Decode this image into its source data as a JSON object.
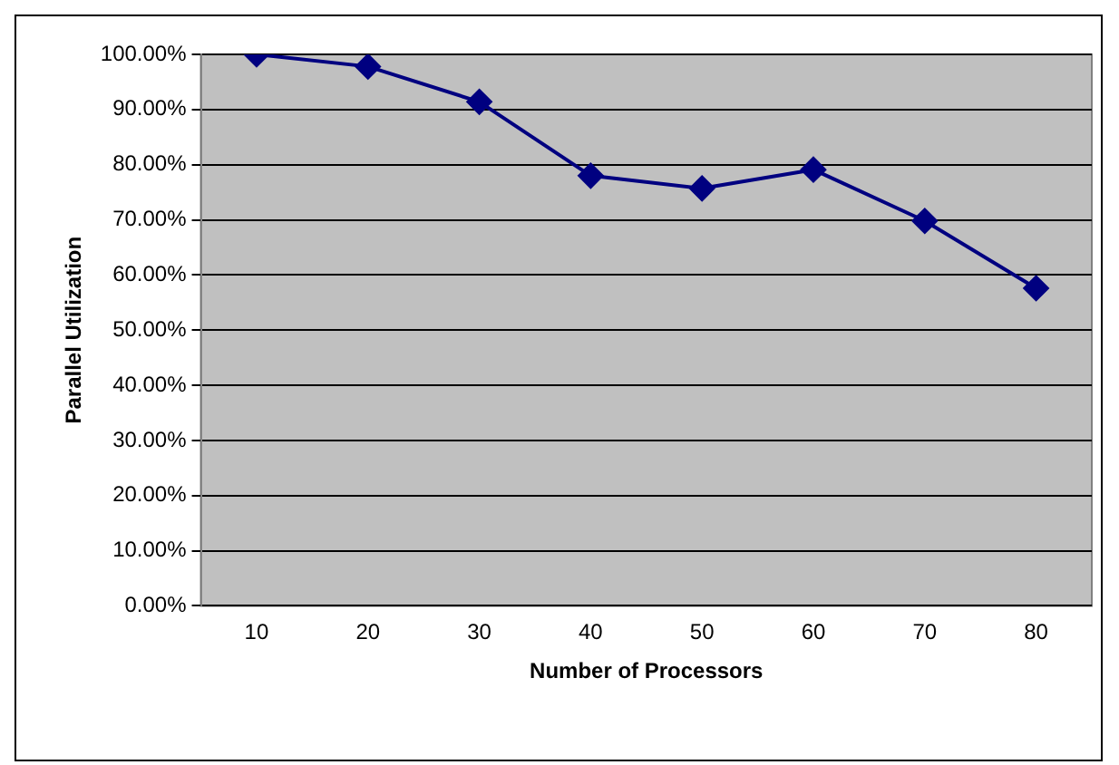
{
  "chart_data": {
    "type": "line",
    "xlabel": "Number of Processors",
    "ylabel": "Parallel Utilization",
    "categories": [
      "10",
      "20",
      "30",
      "40",
      "50",
      "60",
      "70",
      "80"
    ],
    "series": [
      {
        "color": "#000080",
        "values": [
          100,
          97.8,
          91.4,
          78.0,
          75.7,
          79.1,
          69.8,
          57.6
        ]
      }
    ],
    "ylim": [
      0,
      100
    ],
    "yticks": [
      {
        "value": 0,
        "label": "0.00%"
      },
      {
        "value": 10,
        "label": "10.00%"
      },
      {
        "value": 20,
        "label": "20.00%"
      },
      {
        "value": 30,
        "label": "30.00%"
      },
      {
        "value": 40,
        "label": "40.00%"
      },
      {
        "value": 50,
        "label": "50.00%"
      },
      {
        "value": 60,
        "label": "60.00%"
      },
      {
        "value": 70,
        "label": "70.00%"
      },
      {
        "value": 80,
        "label": "80.00%"
      },
      {
        "value": 90,
        "label": "90.00%"
      },
      {
        "value": 100,
        "label": "100.00%"
      }
    ],
    "grid": "y",
    "legend": false,
    "marker": "diamond",
    "line_style": "solid"
  }
}
